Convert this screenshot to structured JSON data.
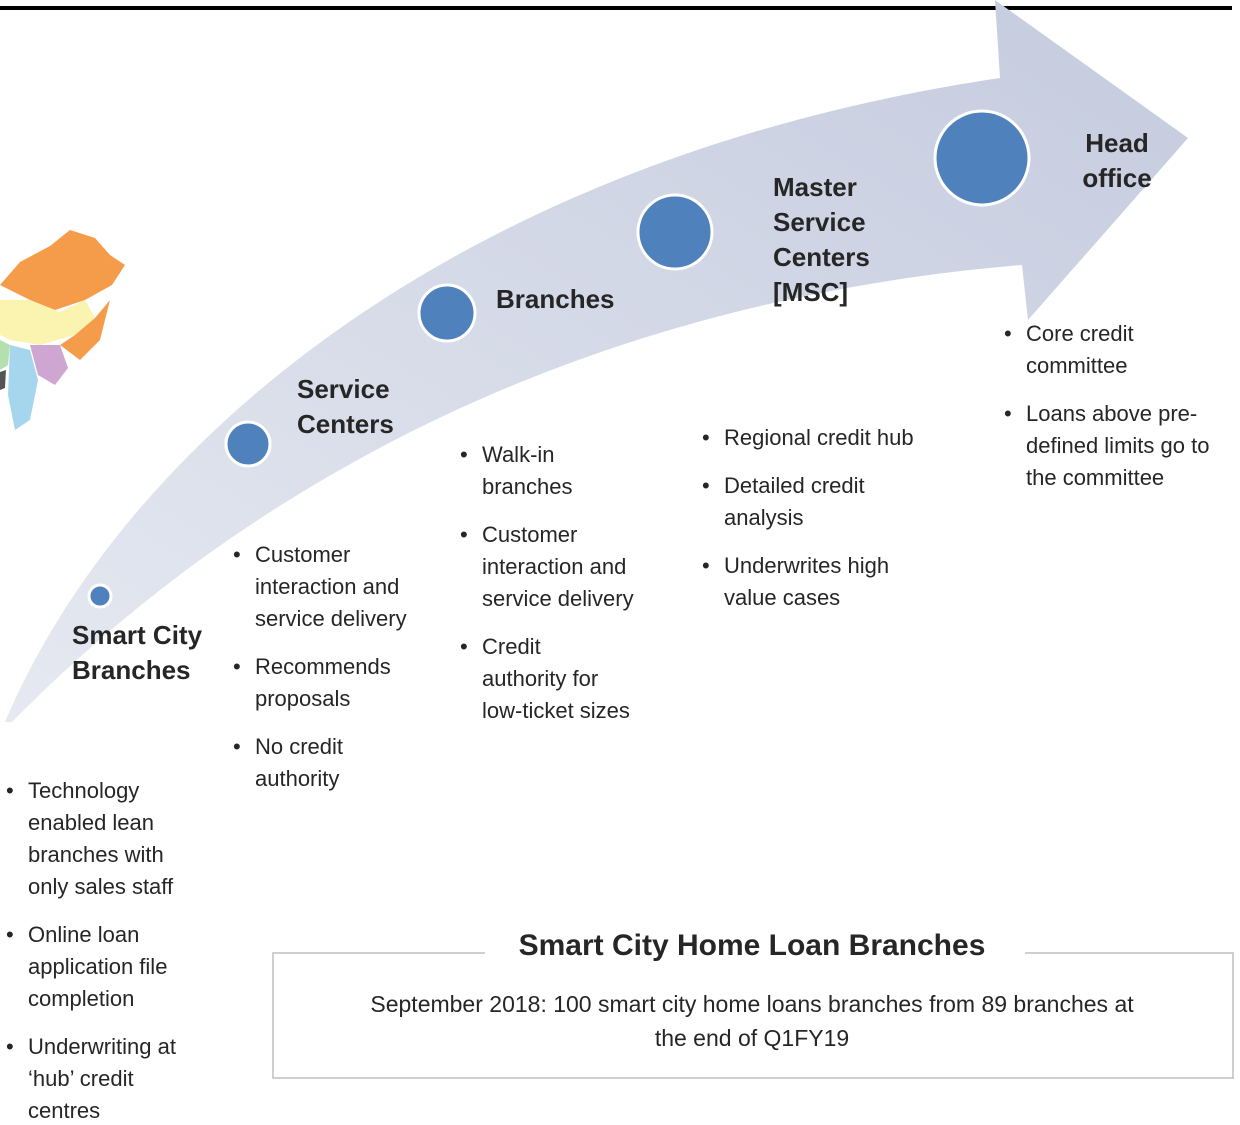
{
  "stages": [
    {
      "label": [
        "Smart City",
        "Branches"
      ],
      "bullets": [
        [
          "Technology",
          "enabled lean",
          "branches with",
          "only sales staff"
        ],
        [
          "Online loan",
          "application file",
          "completion"
        ],
        [
          "Underwriting at",
          "‘hub’ credit",
          "centres"
        ]
      ]
    },
    {
      "label": [
        "Service",
        "Centers"
      ],
      "bullets": [
        [
          "Customer",
          "interaction and",
          "service delivery"
        ],
        [
          "Recommends",
          "proposals"
        ],
        [
          "No credit",
          "authority"
        ]
      ]
    },
    {
      "label": [
        "Branches"
      ],
      "bullets": [
        [
          "Walk-in",
          "branches"
        ],
        [
          "Customer",
          "interaction and",
          "service delivery"
        ],
        [
          "Credit",
          "authority for",
          "low-ticket sizes"
        ]
      ]
    },
    {
      "label": [
        "Master",
        "Service",
        "Centers",
        "[MSC]"
      ],
      "bullets": [
        [
          "Regional credit hub"
        ],
        [
          "Detailed credit",
          "analysis"
        ],
        [
          "Underwrites high",
          "value cases"
        ]
      ]
    },
    {
      "label": [
        "Head",
        "office"
      ],
      "bullets": [
        [
          "Core credit",
          "committee"
        ],
        [
          "Loans above pre-",
          "defined limits go to",
          "the committee"
        ]
      ]
    }
  ],
  "box": {
    "title": "Smart City Home Loan Branches",
    "text": [
      "September 2018: 100 smart city home loans branches from 89 branches at",
      "the end of Q1FY19"
    ]
  }
}
